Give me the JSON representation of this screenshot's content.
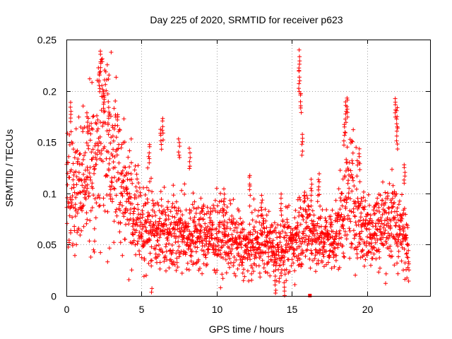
{
  "chart_data": {
    "type": "scatter",
    "title": "Day 225 of 2020, SRMTID for receiver p623",
    "xlabel": "GPS time / hours",
    "ylabel": "SRMTID / TECUs",
    "xlim": [
      0,
      24.2
    ],
    "ylim": [
      0,
      0.25
    ],
    "xticks": [
      0,
      5,
      10,
      15,
      20
    ],
    "xtick_labels": [
      "0",
      "5",
      "10",
      "15",
      "20"
    ],
    "yticks": [
      0,
      0.05,
      0.1,
      0.15,
      0.2,
      0.25
    ],
    "ytick_labels": [
      "0",
      "0.05",
      "0.1",
      "0.15",
      "0.2",
      "0.25"
    ],
    "grid": true,
    "marker": "+",
    "color": "#ff0000",
    "envelope": {
      "x": [
        0,
        0.5,
        1,
        1.5,
        2,
        2.2,
        2.5,
        3,
        3.5,
        4,
        4.5,
        5,
        6,
        7,
        8,
        9,
        10,
        11,
        12,
        13,
        14,
        15,
        15.5,
        16,
        16.5,
        17,
        17.5,
        18,
        18.5,
        19,
        19.5,
        20,
        20.5,
        21,
        21.5,
        22,
        22.5,
        22.8
      ],
      "y": [
        0.11,
        0.1,
        0.1,
        0.12,
        0.13,
        0.16,
        0.17,
        0.14,
        0.12,
        0.1,
        0.08,
        0.07,
        0.065,
        0.065,
        0.06,
        0.06,
        0.06,
        0.055,
        0.045,
        0.055,
        0.045,
        0.05,
        0.065,
        0.07,
        0.06,
        0.055,
        0.055,
        0.06,
        0.09,
        0.1,
        0.075,
        0.065,
        0.065,
        0.07,
        0.075,
        0.07,
        0.055,
        0.05
      ]
    },
    "spikes": [
      {
        "x": 2.3,
        "y": 0.24
      },
      {
        "x": 2.2,
        "y": 0.22
      },
      {
        "x": 2.5,
        "y": 0.2
      },
      {
        "x": 2.8,
        "y": 0.19
      },
      {
        "x": 0.3,
        "y": 0.19
      },
      {
        "x": 1.4,
        "y": 0.18
      },
      {
        "x": 15.5,
        "y": 0.24
      },
      {
        "x": 15.5,
        "y": 0.22
      },
      {
        "x": 15.6,
        "y": 0.2
      },
      {
        "x": 15.7,
        "y": 0.16
      },
      {
        "x": 6.4,
        "y": 0.175
      },
      {
        "x": 6.3,
        "y": 0.165
      },
      {
        "x": 5.5,
        "y": 0.15
      },
      {
        "x": 7.5,
        "y": 0.155
      },
      {
        "x": 8.2,
        "y": 0.145
      },
      {
        "x": 18.7,
        "y": 0.195
      },
      {
        "x": 18.6,
        "y": 0.19
      },
      {
        "x": 18.5,
        "y": 0.17
      },
      {
        "x": 21.9,
        "y": 0.195
      },
      {
        "x": 22.0,
        "y": 0.185
      },
      {
        "x": 22.0,
        "y": 0.165
      },
      {
        "x": 22.5,
        "y": 0.13
      },
      {
        "x": 19.5,
        "y": 0.145
      },
      {
        "x": 12.2,
        "y": 0.12
      },
      {
        "x": 13.0,
        "y": 0.1
      },
      {
        "x": 16.3,
        "y": 0.115
      },
      {
        "x": 16.8,
        "y": 0.12
      },
      {
        "x": 10.5,
        "y": 0.105
      },
      {
        "x": 14.3,
        "y": 0.1
      },
      {
        "x": 13.9,
        "y": 0.02
      },
      {
        "x": 14.5,
        "y": 0.015
      },
      {
        "x": 5.7,
        "y": 0.01
      }
    ]
  }
}
